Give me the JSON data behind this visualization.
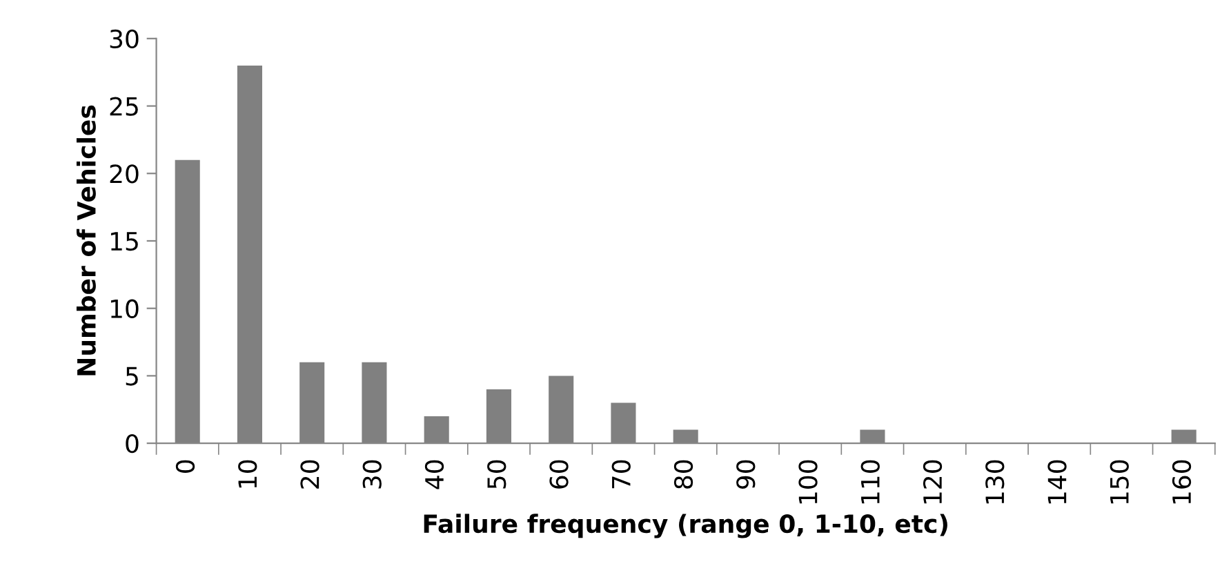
{
  "chart_data": {
    "type": "bar",
    "xlabel": "Failure frequency (range 0, 1-10, etc)",
    "ylabel": "Number of Vehicles",
    "categories": [
      "0",
      "10",
      "20",
      "30",
      "40",
      "50",
      "60",
      "70",
      "80",
      "90",
      "100",
      "110",
      "120",
      "130",
      "140",
      "150",
      "160"
    ],
    "values": [
      21,
      28,
      6,
      6,
      2,
      4,
      5,
      3,
      1,
      0,
      0,
      1,
      0,
      0,
      0,
      0,
      1
    ],
    "color": "#808080",
    "ylim": [
      0,
      30
    ],
    "yticks": [
      0,
      5,
      10,
      15,
      20,
      25,
      30
    ],
    "grid": false,
    "legend": false
  }
}
